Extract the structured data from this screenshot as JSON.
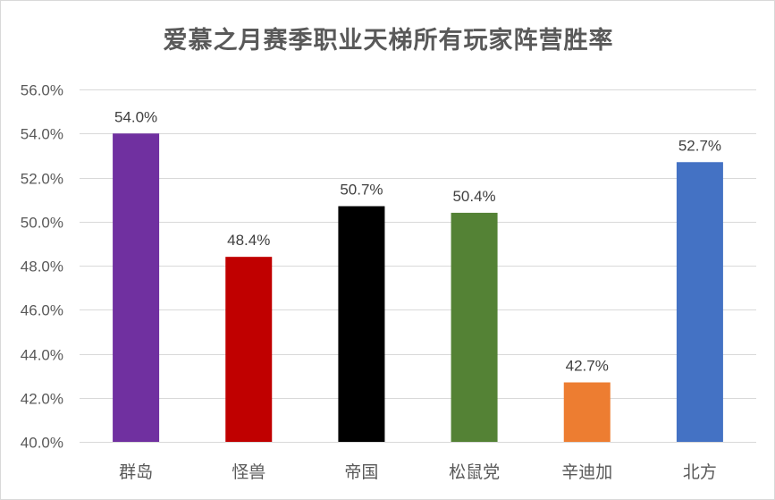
{
  "chart_data": {
    "type": "bar",
    "title": "爱慕之月赛季职业天梯所有玩家阵营胜率",
    "categories": [
      "群岛",
      "怪兽",
      "帝国",
      "松鼠党",
      "辛迪加",
      "北方"
    ],
    "values": [
      54.0,
      48.4,
      50.7,
      50.4,
      42.7,
      52.7
    ],
    "data_labels": [
      "54.0%",
      "48.4%",
      "50.7%",
      "50.4%",
      "42.7%",
      "52.7%"
    ],
    "colors": [
      "#7030a0",
      "#c00000",
      "#000000",
      "#548235",
      "#ed7d31",
      "#4472c4"
    ],
    "ylim": [
      40,
      56
    ],
    "yticks": [
      40,
      42,
      44,
      46,
      48,
      50,
      52,
      54,
      56
    ],
    "ytick_labels": [
      "40.0%",
      "42.0%",
      "44.0%",
      "46.0%",
      "48.0%",
      "50.0%",
      "52.0%",
      "54.0%",
      "56.0%"
    ],
    "xlabel": "",
    "ylabel": "",
    "grid": true,
    "legend": "none"
  }
}
